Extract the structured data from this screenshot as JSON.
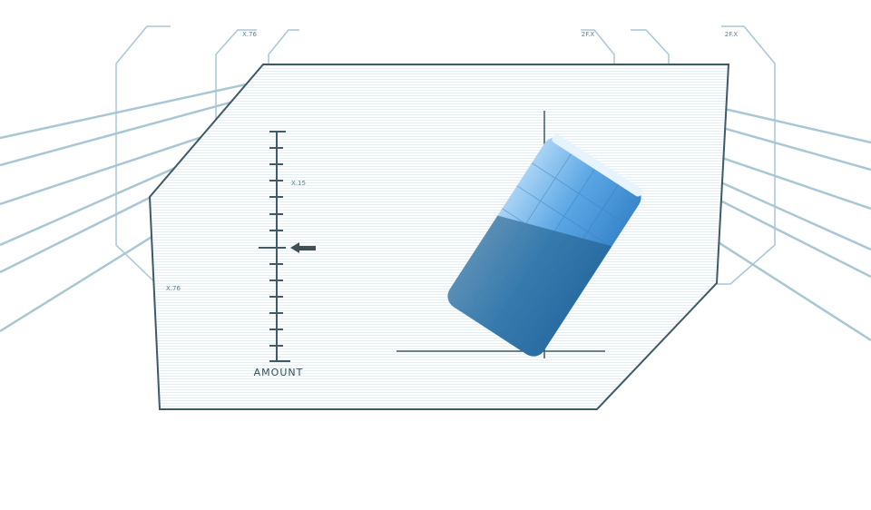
{
  "gauge": {
    "label": "AMOUNT"
  },
  "tags": [
    {
      "text": "X.76"
    },
    {
      "text": "X.15"
    },
    {
      "text": "X.76"
    },
    {
      "text": "2F.X"
    },
    {
      "text": "2F.X"
    }
  ]
}
